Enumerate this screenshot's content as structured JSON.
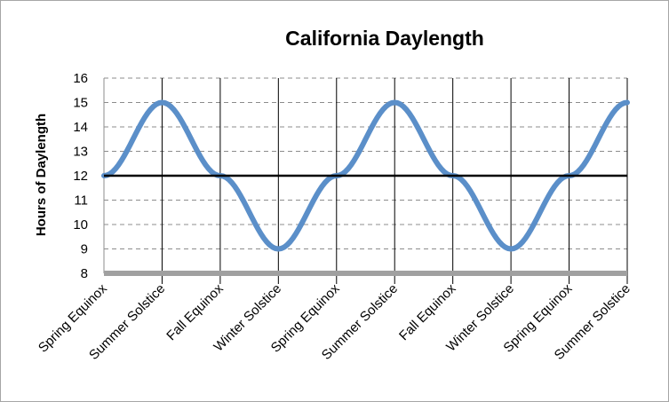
{
  "chart_data": {
    "type": "line",
    "title": "California Daylength",
    "xlabel": "",
    "ylabel": "Hours of Daylength",
    "ylim": [
      8,
      16
    ],
    "yticks": [
      8,
      9,
      10,
      11,
      12,
      13,
      14,
      15,
      16
    ],
    "categories": [
      "Spring Equinox",
      "Summer Solstice",
      "Fall Equinox",
      "Winter Solstice",
      "Spring Equinox",
      "Summer Solstice",
      "Fall Equinox",
      "Winter Solstice",
      "Spring Equinox",
      "Summer Solstice"
    ],
    "series": [
      {
        "values": [
          12,
          15,
          12,
          9,
          12,
          15,
          12,
          9,
          12,
          15
        ],
        "color": "#5b8fc9",
        "curve": "sinusoidal"
      },
      {
        "values": [
          12,
          12,
          12,
          12,
          12,
          12,
          12,
          12,
          12,
          12
        ],
        "color": "#000000"
      }
    ],
    "grid": {
      "horizontal": "dashed",
      "vertical": "solid-at-categories"
    },
    "xaxis_color": "#a0a0a0",
    "legend": "none"
  }
}
